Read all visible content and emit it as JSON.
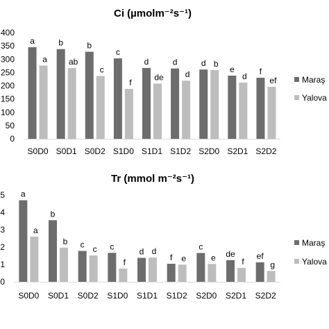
{
  "chart_data": [
    {
      "type": "bar",
      "title": "Ci (µmolm⁻²s⁻¹)",
      "categories": [
        "S0D0",
        "S0D1",
        "S0D2",
        "S1D0",
        "S1D1",
        "S1D2",
        "S2D0",
        "S2D1",
        "S2D2"
      ],
      "ylim": [
        0,
        400
      ],
      "yticks": [
        "0",
        "50",
        "100",
        "150",
        "200",
        "250",
        "300",
        "350",
        "400"
      ],
      "legend_position": "right",
      "series": [
        {
          "name": "Maraş",
          "color": "#6d6d6d",
          "values": [
            345,
            338,
            328,
            303,
            267,
            265,
            261,
            238,
            230
          ],
          "labels": [
            "a",
            "b",
            "b",
            "c",
            "d",
            "d",
            "d",
            "e",
            "f"
          ]
        },
        {
          "name": "Yalova",
          "color": "#bdbdbd",
          "values": [
            276,
            267,
            237,
            188,
            208,
            219,
            259,
            212,
            196
          ],
          "labels": [
            "a",
            "ab",
            "c",
            "f",
            "de",
            "d",
            "b",
            "d",
            "ef"
          ]
        }
      ]
    },
    {
      "type": "bar",
      "title": "Tr (mmol m⁻²s⁻¹)",
      "categories": [
        "S0D0",
        "S0D1",
        "S0D2",
        "S1D0",
        "S1D1",
        "S1D2",
        "S2D0",
        "S2D1",
        "S2D2"
      ],
      "ylim": [
        0,
        5
      ],
      "yticks": [
        "0",
        "1",
        "2",
        "3",
        "4",
        "5"
      ],
      "legend_position": "right",
      "series": [
        {
          "name": "Maraş",
          "color": "#6d6d6d",
          "values": [
            4.7,
            3.55,
            1.78,
            1.67,
            1.38,
            1.04,
            1.66,
            1.25,
            1.12
          ],
          "labels": [
            "a",
            "b",
            "c",
            "c",
            "d",
            "f",
            "c",
            "de",
            "ef"
          ]
        },
        {
          "name": "Yalova",
          "color": "#bdbdbd",
          "values": [
            2.6,
            1.97,
            1.52,
            0.76,
            1.4,
            0.99,
            1.03,
            0.8,
            0.63
          ],
          "labels": [
            "a",
            "b",
            "c",
            "f",
            "d",
            "e",
            "e",
            "f",
            "g"
          ]
        }
      ]
    }
  ]
}
